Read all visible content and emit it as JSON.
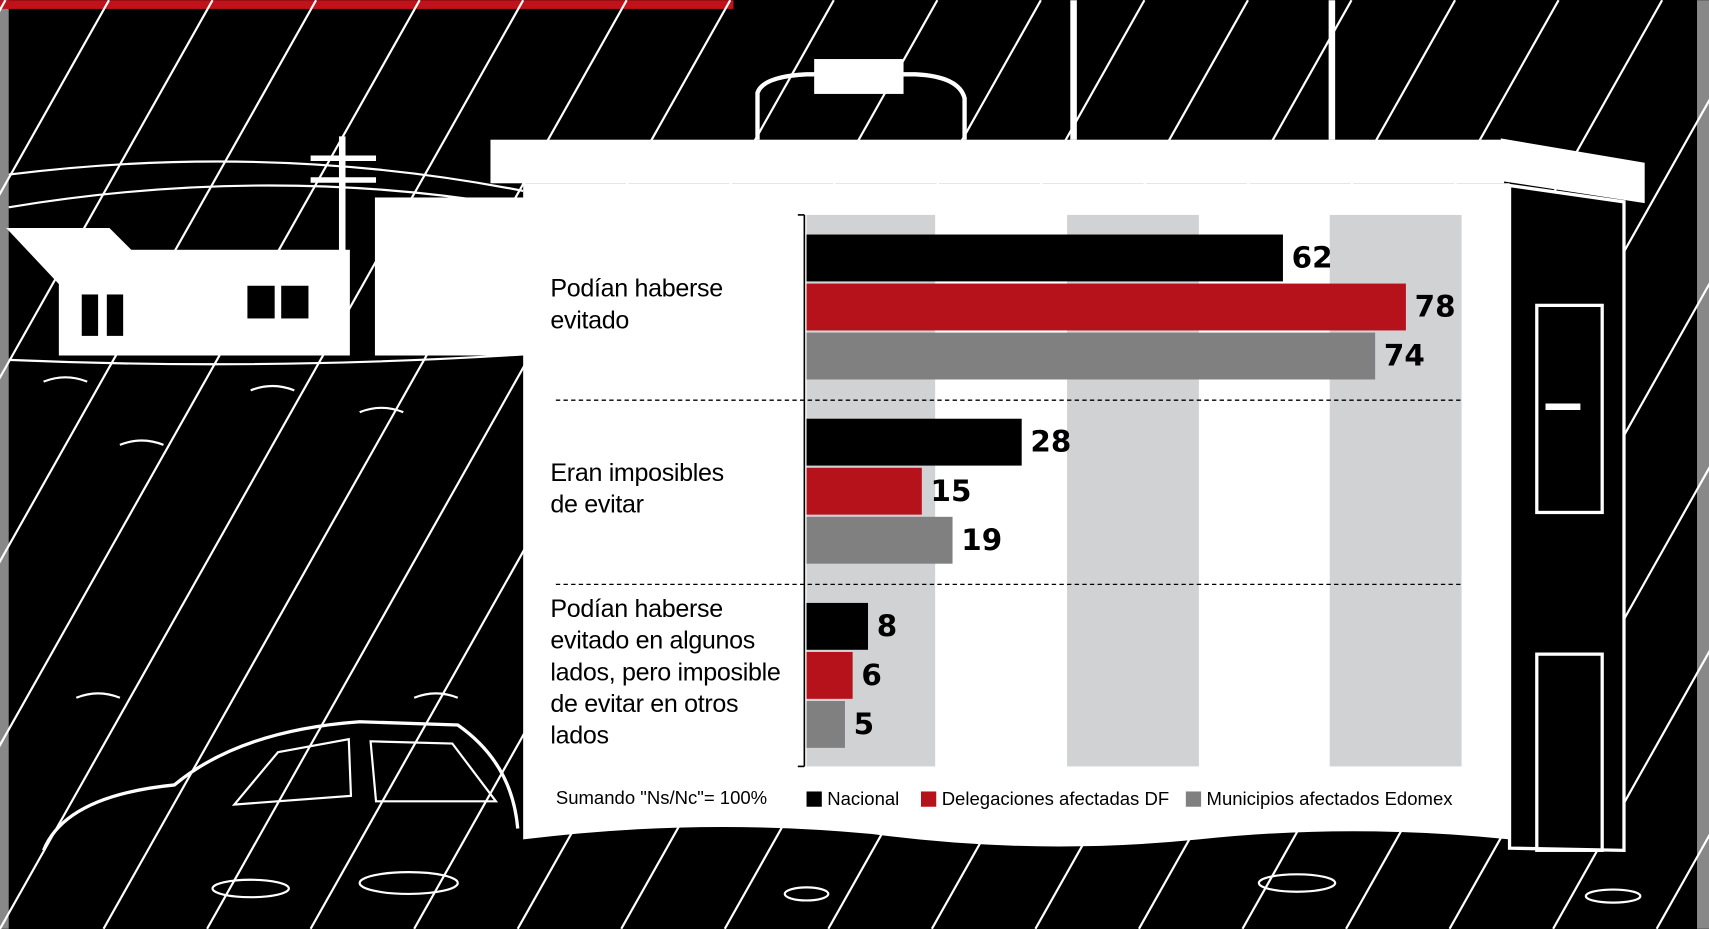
{
  "chart_data": {
    "type": "bar",
    "orientation": "horizontal",
    "categories": [
      "Podían haberse\nevitado",
      "Eran imposibles\nde evitar",
      "Podían haberse\nevitado en algunos\nlados, pero imposible\nde evitar en otros\nlados"
    ],
    "series": [
      {
        "name": "Nacional",
        "color": "#000000",
        "values": [
          62,
          28,
          8
        ]
      },
      {
        "name": "Delegaciones afectadas DF",
        "color": "#b5121b",
        "values": [
          78,
          15,
          6
        ]
      },
      {
        "name": "Municipios afectados Edomex",
        "color": "#808080",
        "values": [
          74,
          19,
          5
        ]
      }
    ],
    "note": "Sumando \"Ns/Nc\"= 100%"
  }
}
